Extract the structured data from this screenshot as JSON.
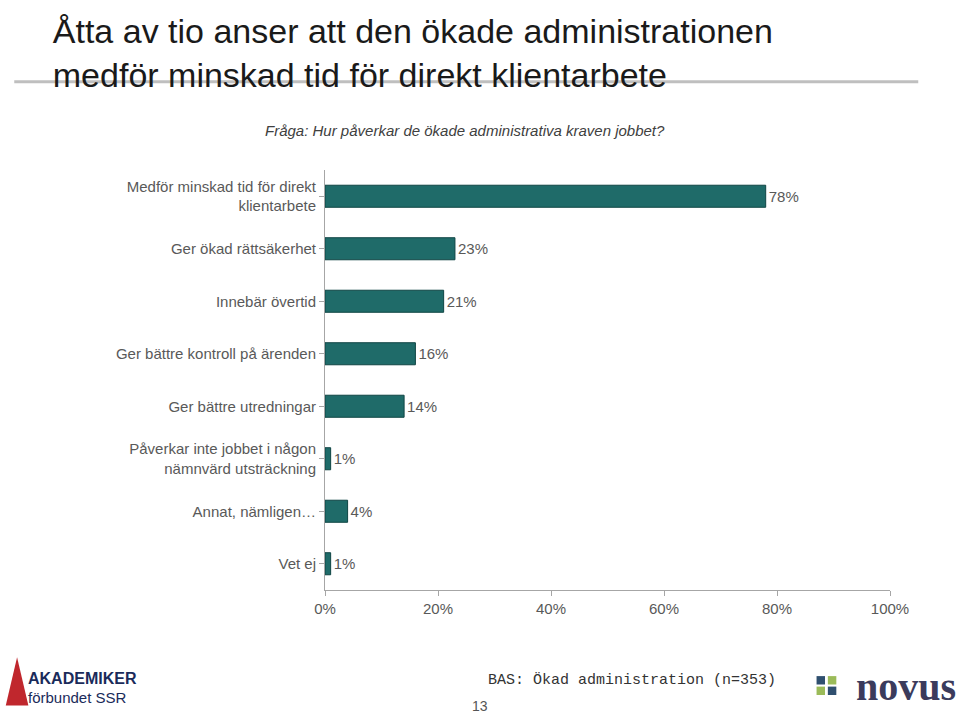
{
  "chart_data": {
    "type": "bar",
    "orientation": "horizontal",
    "title": "Åtta av tio anser att den ökade administrationen medför minskad tid för direkt klientarbete",
    "subtitle": "Fråga: Hur påverkar de ökade administrativa kraven jobbet?",
    "categories": [
      "Medför minskad tid för direkt klientarbete",
      "Ger ökad rättsäkerhet",
      "Innebär övertid",
      "Ger bättre kontroll på ärenden",
      "Ger bättre utredningar",
      "Påverkar inte jobbet i någon nämnvärd utsträckning",
      "Annat, nämligen…",
      "Vet ej"
    ],
    "values": [
      78,
      23,
      21,
      16,
      14,
      1,
      4,
      1
    ],
    "value_labels": [
      "78%",
      "23%",
      "21%",
      "16%",
      "14%",
      "1%",
      "4%",
      "1%"
    ],
    "color": "#1f6b69",
    "data_labels": true,
    "grid": false,
    "xlim": [
      0,
      100
    ],
    "xticks": [
      {
        "value": 0,
        "label": "0%"
      },
      {
        "value": 20,
        "label": "20%"
      },
      {
        "value": 40,
        "label": "40%"
      },
      {
        "value": 60,
        "label": "60%"
      },
      {
        "value": 80,
        "label": "80%"
      },
      {
        "value": 100,
        "label": "100%"
      }
    ],
    "annotations": [
      "BAS: Ökad administration (n=353)",
      "13",
      "AKADEMIKER",
      "förbundet SSR",
      "novus"
    ]
  }
}
